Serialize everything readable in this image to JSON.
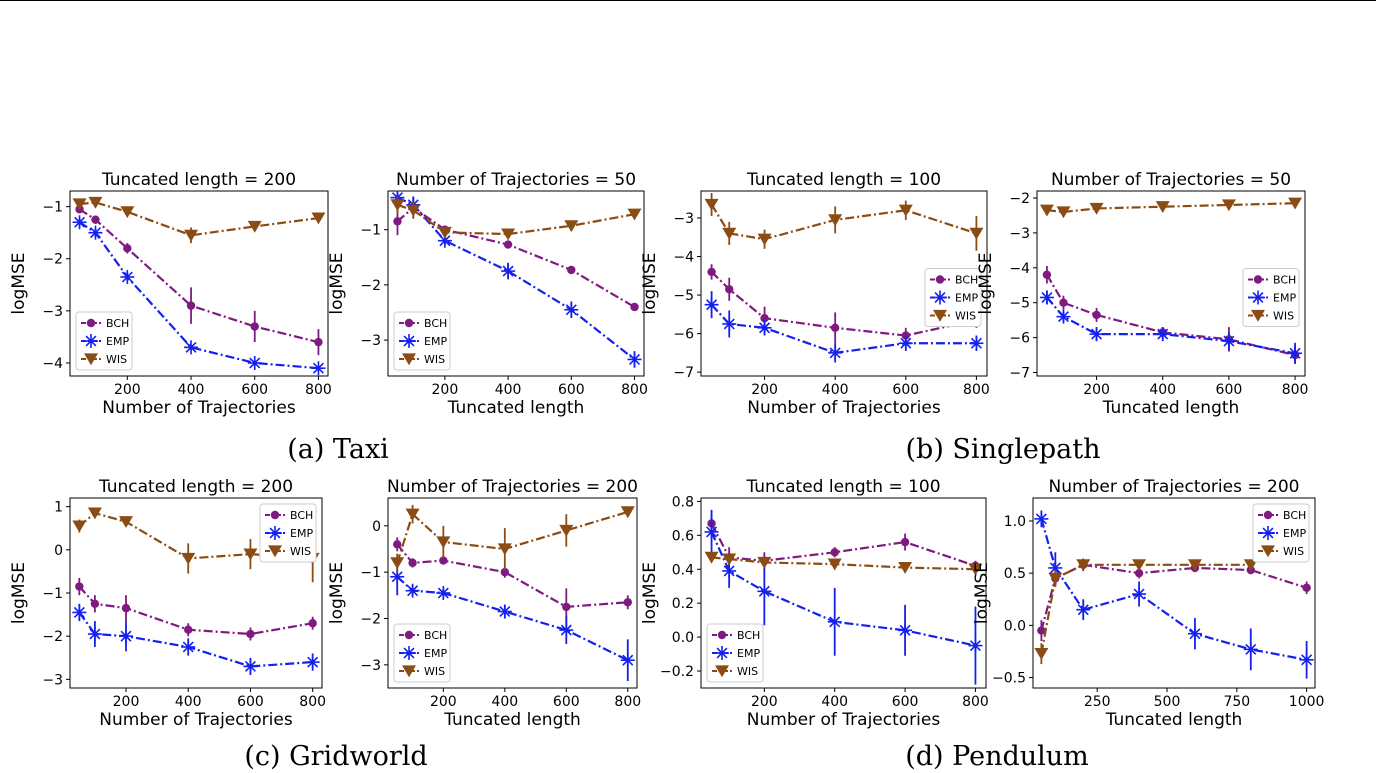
{
  "captions": {
    "a": "(a) Taxi",
    "b": "(b) Singlepath",
    "c": "(c) Gridworld",
    "d": "(d) Pendulum"
  },
  "colors": {
    "BCH": "#7f1a80",
    "EMP": "#1420ee",
    "WIS": "#8b4c14"
  },
  "chart_data": [
    {
      "type": "line",
      "title": "Tuncated length = 200",
      "xlabel": "Number of Trajectories",
      "ylabel": "logMSE",
      "xlim": [
        20,
        830
      ],
      "ylim": [
        -4.25,
        -0.7
      ],
      "xticks": [
        200,
        400,
        600,
        800
      ],
      "xticklabels": [
        "200",
        "400",
        "600",
        "800"
      ],
      "yticks": [
        -1,
        -2,
        -3,
        -4
      ],
      "yticklabels": [
        "−1",
        "−2",
        "−3",
        "−4"
      ],
      "legend": {
        "position": "bottom-left"
      },
      "series": [
        {
          "name": "BCH",
          "x": [
            50,
            100,
            200,
            400,
            600,
            800
          ],
          "y": [
            -1.05,
            -1.25,
            -1.8,
            -2.9,
            -3.3,
            -3.6
          ],
          "err": [
            0.05,
            0.08,
            0.1,
            0.35,
            0.3,
            0.25
          ]
        },
        {
          "name": "EMP",
          "x": [
            50,
            100,
            200,
            400,
            600,
            800
          ],
          "y": [
            -1.3,
            -1.5,
            -2.35,
            -3.7,
            -4.0,
            -4.1
          ],
          "err": [
            0.08,
            0.08,
            0.08,
            0.05,
            0.05,
            0.05
          ]
        },
        {
          "name": "WIS",
          "x": [
            50,
            100,
            200,
            400,
            600,
            800
          ],
          "y": [
            -0.95,
            -0.92,
            -1.1,
            -1.55,
            -1.38,
            -1.22
          ],
          "err": [
            0.03,
            0.03,
            0.04,
            0.15,
            0.06,
            0.04
          ]
        }
      ]
    },
    {
      "type": "line",
      "title": "Number of Trajectories = 50",
      "xlabel": "Tuncated length",
      "ylabel": "logMSE",
      "xlim": [
        20,
        830
      ],
      "ylim": [
        -3.65,
        -0.3
      ],
      "xticks": [
        200,
        400,
        600,
        800
      ],
      "xticklabels": [
        "200",
        "400",
        "600",
        "800"
      ],
      "yticks": [
        -1,
        -2,
        -3
      ],
      "yticklabels": [
        "−1",
        "−2",
        "−3"
      ],
      "legend": {
        "position": "bottom-left"
      },
      "series": [
        {
          "name": "BCH",
          "x": [
            50,
            100,
            200,
            400,
            600,
            800
          ],
          "y": [
            -0.85,
            -0.6,
            -1.0,
            -1.27,
            -1.73,
            -2.4
          ],
          "err": [
            0.25,
            0.2,
            0.05,
            0.05,
            0.05,
            0.04
          ]
        },
        {
          "name": "EMP",
          "x": [
            50,
            100,
            200,
            400,
            600,
            800
          ],
          "y": [
            -0.42,
            -0.55,
            -1.2,
            -1.75,
            -2.45,
            -3.35
          ],
          "err": [
            0.1,
            0.15,
            0.08,
            0.15,
            0.15,
            0.15
          ]
        },
        {
          "name": "WIS",
          "x": [
            50,
            100,
            200,
            400,
            600,
            800
          ],
          "y": [
            -0.55,
            -0.65,
            -1.05,
            -1.08,
            -0.93,
            -0.72
          ],
          "err": [
            0.15,
            0.15,
            0.06,
            0.06,
            0.04,
            0.04
          ]
        }
      ]
    },
    {
      "type": "line",
      "title": "Tuncated length = 100",
      "xlabel": "Number of Trajectories",
      "ylabel": "logMSE",
      "xlim": [
        20,
        830
      ],
      "ylim": [
        -7.1,
        -2.3
      ],
      "xticks": [
        200,
        400,
        600,
        800
      ],
      "xticklabels": [
        "200",
        "400",
        "600",
        "800"
      ],
      "yticks": [
        -3,
        -4,
        -5,
        -6,
        -7
      ],
      "yticklabels": [
        "−3",
        "−4",
        "−5",
        "−6",
        "−7"
      ],
      "legend": {
        "position": "center-right"
      },
      "series": [
        {
          "name": "BCH",
          "x": [
            50,
            100,
            200,
            400,
            600,
            800
          ],
          "y": [
            -4.4,
            -4.85,
            -5.6,
            -5.85,
            -6.05,
            -5.65
          ],
          "err": [
            0.2,
            0.3,
            0.3,
            0.4,
            0.2,
            0.2
          ]
        },
        {
          "name": "EMP",
          "x": [
            50,
            100,
            200,
            400,
            600,
            800
          ],
          "y": [
            -5.25,
            -5.75,
            -5.85,
            -6.5,
            -6.25,
            -6.25
          ],
          "err": [
            0.35,
            0.35,
            0.2,
            0.25,
            0.2,
            0.2
          ]
        },
        {
          "name": "WIS",
          "x": [
            50,
            100,
            200,
            400,
            600,
            800
          ],
          "y": [
            -2.65,
            -3.4,
            -3.55,
            -3.05,
            -2.8,
            -3.4
          ],
          "err": [
            0.3,
            0.3,
            0.25,
            0.35,
            0.25,
            0.45
          ]
        }
      ]
    },
    {
      "type": "line",
      "title": "Number of Trajectories = 50",
      "xlabel": "Tuncated length",
      "ylabel": "logMSE",
      "xlim": [
        20,
        830
      ],
      "ylim": [
        -7.1,
        -1.8
      ],
      "xticks": [
        200,
        400,
        600,
        800
      ],
      "xticklabels": [
        "200",
        "400",
        "600",
        "800"
      ],
      "yticks": [
        -2,
        -3,
        -4,
        -5,
        -6,
        -7
      ],
      "yticklabels": [
        "−2",
        "−3",
        "−4",
        "−5",
        "−6",
        "−7"
      ],
      "legend": {
        "position": "center-right"
      },
      "series": [
        {
          "name": "BCH",
          "x": [
            50,
            100,
            200,
            400,
            600,
            800
          ],
          "y": [
            -4.2,
            -5.0,
            -5.35,
            -5.85,
            -6.05,
            -6.5
          ],
          "err": [
            0.25,
            0.2,
            0.2,
            0.15,
            0.35,
            0.25
          ]
        },
        {
          "name": "EMP",
          "x": [
            50,
            100,
            200,
            400,
            600,
            800
          ],
          "y": [
            -4.85,
            -5.4,
            -5.9,
            -5.9,
            -6.1,
            -6.45
          ],
          "err": [
            0.2,
            0.15,
            0.2,
            0.2,
            0.25,
            0.3
          ]
        },
        {
          "name": "WIS",
          "x": [
            50,
            100,
            200,
            400,
            600,
            800
          ],
          "y": [
            -2.35,
            -2.4,
            -2.3,
            -2.25,
            -2.2,
            -2.15
          ],
          "err": [
            0.05,
            0.05,
            0.05,
            0.05,
            0.05,
            0.05
          ]
        }
      ]
    },
    {
      "type": "line",
      "title": "Tuncated length = 200",
      "xlabel": "Number of Trajectories",
      "ylabel": "logMSE",
      "xlim": [
        20,
        830
      ],
      "ylim": [
        -3.2,
        1.2
      ],
      "xticks": [
        200,
        400,
        600,
        800
      ],
      "xticklabels": [
        "200",
        "400",
        "600",
        "800"
      ],
      "yticks": [
        1,
        0,
        -1,
        -2,
        -3
      ],
      "yticklabels": [
        "1",
        "0",
        "−1",
        "−2",
        "−3"
      ],
      "legend": {
        "position": "top-right"
      },
      "series": [
        {
          "name": "BCH",
          "x": [
            50,
            100,
            200,
            400,
            600,
            800
          ],
          "y": [
            -0.85,
            -1.25,
            -1.35,
            -1.85,
            -1.95,
            -1.7
          ],
          "err": [
            0.2,
            0.2,
            0.3,
            0.15,
            0.15,
            0.15
          ]
        },
        {
          "name": "EMP",
          "x": [
            50,
            100,
            200,
            400,
            600,
            800
          ],
          "y": [
            -1.45,
            -1.95,
            -2.0,
            -2.25,
            -2.7,
            -2.6
          ],
          "err": [
            0.2,
            0.3,
            0.35,
            0.2,
            0.2,
            0.2
          ]
        },
        {
          "name": "WIS",
          "x": [
            50,
            100,
            200,
            400,
            600,
            800
          ],
          "y": [
            0.55,
            0.85,
            0.65,
            -0.2,
            -0.1,
            -0.2
          ],
          "err": [
            0.15,
            0.08,
            0.06,
            0.35,
            0.35,
            0.55
          ]
        }
      ]
    },
    {
      "type": "line",
      "title": "Number of Trajectories = 200",
      "xlabel": "Tuncated length",
      "ylabel": "logMSE",
      "xlim": [
        20,
        830
      ],
      "ylim": [
        -3.5,
        0.6
      ],
      "xticks": [
        200,
        400,
        600,
        800
      ],
      "xticklabels": [
        "200",
        "400",
        "600",
        "800"
      ],
      "yticks": [
        0,
        -1,
        -2,
        -3
      ],
      "yticklabels": [
        "0",
        "−1",
        "−2",
        "−3"
      ],
      "legend": {
        "position": "bottom-left"
      },
      "series": [
        {
          "name": "BCH",
          "x": [
            50,
            100,
            200,
            400,
            600,
            800
          ],
          "y": [
            -0.4,
            -0.8,
            -0.75,
            -1.0,
            -1.75,
            -1.65
          ],
          "err": [
            0.15,
            0.1,
            0.08,
            0.12,
            0.4,
            0.15
          ]
        },
        {
          "name": "EMP",
          "x": [
            50,
            100,
            200,
            400,
            600,
            800
          ],
          "y": [
            -1.1,
            -1.4,
            -1.45,
            -1.85,
            -2.25,
            -2.9
          ],
          "err": [
            0.4,
            0.12,
            0.1,
            0.15,
            0.3,
            0.45
          ]
        },
        {
          "name": "WIS",
          "x": [
            50,
            100,
            200,
            400,
            600,
            800
          ],
          "y": [
            -0.8,
            0.25,
            -0.35,
            -0.5,
            -0.1,
            0.3
          ],
          "err": [
            0.2,
            0.2,
            0.35,
            0.45,
            0.35,
            0.1
          ]
        }
      ]
    },
    {
      "type": "line",
      "title": "Tuncated length = 100",
      "xlabel": "Number of Trajectories",
      "ylabel": "logMSE",
      "xlim": [
        20,
        830
      ],
      "ylim": [
        -0.3,
        0.82
      ],
      "xticks": [
        200,
        400,
        600,
        800
      ],
      "xticklabels": [
        "200",
        "400",
        "600",
        "800"
      ],
      "yticks": [
        0.8,
        0.6,
        0.4,
        0.2,
        0.0,
        -0.2
      ],
      "yticklabels": [
        "0.8",
        "0.6",
        "0.4",
        "0.2",
        "0.0",
        "−0.2"
      ],
      "legend": {
        "position": "bottom-left"
      },
      "series": [
        {
          "name": "BCH",
          "x": [
            50,
            100,
            200,
            400,
            600,
            800
          ],
          "y": [
            0.67,
            0.47,
            0.45,
            0.5,
            0.56,
            0.42
          ],
          "err": [
            0.06,
            0.06,
            0.05,
            0.03,
            0.05,
            0.03
          ]
        },
        {
          "name": "EMP",
          "x": [
            50,
            100,
            200,
            400,
            600,
            800
          ],
          "y": [
            0.62,
            0.39,
            0.27,
            0.09,
            0.04,
            -0.05
          ],
          "err": [
            0.13,
            0.1,
            0.2,
            0.2,
            0.15,
            0.23
          ]
        },
        {
          "name": "WIS",
          "x": [
            50,
            100,
            200,
            400,
            600,
            800
          ],
          "y": [
            0.47,
            0.46,
            0.44,
            0.43,
            0.41,
            0.4
          ],
          "err": [
            0.03,
            0.03,
            0.02,
            0.02,
            0.02,
            0.02
          ]
        }
      ]
    },
    {
      "type": "line",
      "title": "Number of Trajectories = 200",
      "xlabel": "Tuncated length",
      "ylabel": "logMSE",
      "xlim": [
        20,
        1030
      ],
      "ylim": [
        -0.6,
        1.22
      ],
      "xticks": [
        250,
        500,
        750,
        1000
      ],
      "xticklabels": [
        "250",
        "500",
        "750",
        "1000"
      ],
      "yticks": [
        1.0,
        0.5,
        0.0,
        -0.5
      ],
      "yticklabels": [
        "1.0",
        "0.5",
        "0.0",
        "−0.5"
      ],
      "legend": {
        "position": "top-right"
      },
      "series": [
        {
          "name": "BCH",
          "x": [
            50,
            100,
            200,
            400,
            600,
            800,
            1000
          ],
          "y": [
            -0.05,
            0.45,
            0.58,
            0.5,
            0.55,
            0.53,
            0.36
          ],
          "err": [
            0.1,
            0.08,
            0.06,
            0.05,
            0.04,
            0.04,
            0.06
          ]
        },
        {
          "name": "EMP",
          "x": [
            50,
            100,
            200,
            400,
            600,
            800,
            1000
          ],
          "y": [
            1.02,
            0.55,
            0.15,
            0.3,
            -0.08,
            -0.23,
            -0.33
          ],
          "err": [
            0.08,
            0.15,
            0.1,
            0.12,
            0.15,
            0.2,
            0.18
          ]
        },
        {
          "name": "WIS",
          "x": [
            50,
            100,
            200,
            400,
            600,
            800,
            1000
          ],
          "y": [
            -0.27,
            0.45,
            0.58,
            0.58,
            0.58,
            0.58,
            null
          ],
          "err": [
            0.1,
            0.08,
            0.05,
            0.04,
            0.04,
            0.04,
            null
          ]
        }
      ]
    }
  ]
}
